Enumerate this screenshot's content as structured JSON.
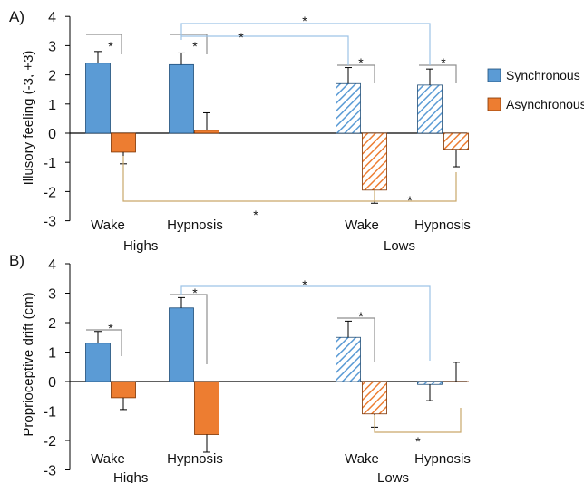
{
  "colors": {
    "sync": "#5b9bd5",
    "sync_edge": "#1f4e79",
    "async": "#ed7d31",
    "async_edge": "#7f3300",
    "bracket_blue": "#9dc3e6",
    "bracket_gold": "#c9a86a",
    "axis": "#000000"
  },
  "legend": {
    "entries": [
      {
        "label": "Synchronous",
        "color": "#5b9bd5"
      },
      {
        "label": "Asynchronous",
        "color": "#ed7d31"
      }
    ],
    "placement": "right of panel A"
  },
  "chart_data": [
    {
      "panel": "A)",
      "type": "bar",
      "ylabel": "Illusory feeling (-3, +3)",
      "ylim": [
        -3,
        4
      ],
      "yticks": [
        "4",
        "3",
        "2",
        "1",
        "0",
        "-1",
        "-2",
        "-3"
      ],
      "categories": [
        "Wake",
        "Hypnosis",
        "Wake",
        "Hypnosis"
      ],
      "groups": [
        "Highs",
        "Lows"
      ],
      "series": [
        {
          "name": "Synchronous",
          "values": [
            2.4,
            2.35,
            1.7,
            1.65
          ],
          "errors": [
            0.4,
            0.4,
            0.55,
            0.55
          ],
          "hatched": [
            false,
            false,
            true,
            true
          ]
        },
        {
          "name": "Asynchronous",
          "values": [
            -0.65,
            0.1,
            -1.95,
            -0.55
          ],
          "errors": [
            0.4,
            0.6,
            0.45,
            0.6
          ],
          "hatched": [
            false,
            false,
            true,
            true
          ]
        }
      ],
      "annotations": [
        "*",
        "*",
        "*",
        "*",
        "*",
        "*",
        "*"
      ]
    },
    {
      "panel": "B)",
      "type": "bar",
      "ylabel": "Proprioceptive drift (cm)",
      "ylim": [
        -3,
        4
      ],
      "yticks": [
        "4",
        "3",
        "2",
        "1",
        "0",
        "-1",
        "-2",
        "-3"
      ],
      "categories": [
        "Wake",
        "Hypnosis",
        "Wake",
        "Hypnosis"
      ],
      "groups": [
        "Highs",
        "Lows"
      ],
      "series": [
        {
          "name": "Synchronous",
          "values": [
            1.3,
            2.5,
            1.5,
            -0.1
          ],
          "errors": [
            0.4,
            0.35,
            0.55,
            0.55
          ],
          "hatched": [
            false,
            false,
            true,
            true
          ]
        },
        {
          "name": "Asynchronous",
          "values": [
            -0.55,
            -1.8,
            -1.1,
            0.0
          ],
          "errors": [
            0.4,
            0.6,
            0.45,
            0.65
          ],
          "hatched": [
            false,
            false,
            true,
            true
          ]
        }
      ],
      "annotations": [
        "*",
        "*",
        "*",
        "*",
        "*"
      ]
    }
  ]
}
